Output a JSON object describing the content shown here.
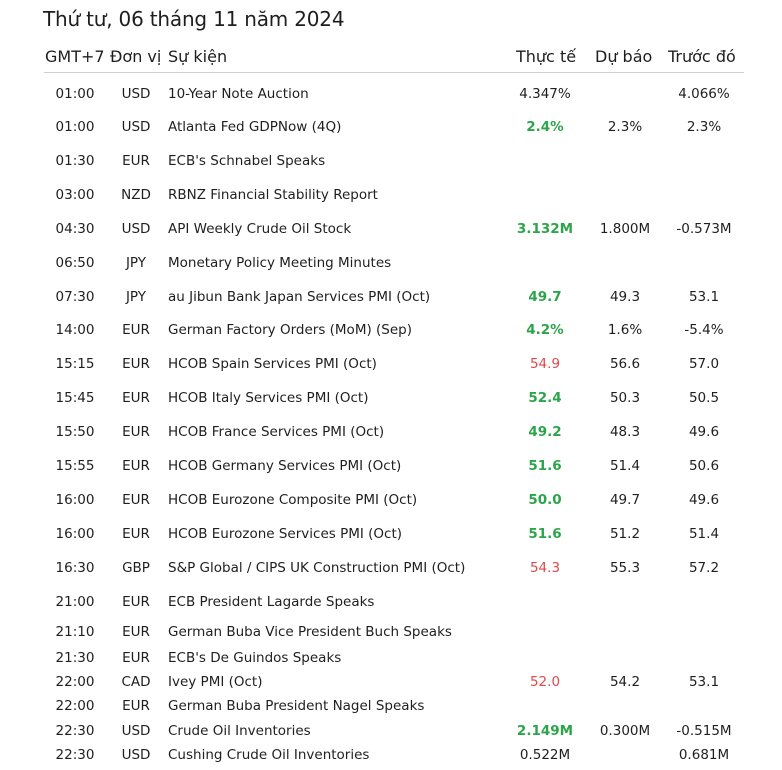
{
  "title": "Thứ tư, 06 tháng 11 năm 2024",
  "headers": {
    "time": "GMT+7",
    "currency": "Đơn vị",
    "event": "Sự kiện",
    "actual": "Thực tế",
    "forecast": "Dự báo",
    "previous": "Trước đó"
  },
  "colors": {
    "good": "#2ca54a",
    "bad": "#e0484a",
    "neutral": "#1f1f1f"
  },
  "rows": [
    {
      "time": "01:00",
      "currency": "USD",
      "event": "10-Year Note Auction",
      "actual": "4.347%",
      "actual_status": "neutral",
      "forecast": "",
      "previous": "4.066%"
    },
    {
      "time": "01:00",
      "currency": "USD",
      "event": "Atlanta Fed GDPNow (4Q)",
      "actual": "2.4%",
      "actual_status": "good",
      "forecast": "2.3%",
      "previous": "2.3%"
    },
    {
      "time": "01:30",
      "currency": "EUR",
      "event": "ECB's Schnabel Speaks",
      "actual": "",
      "actual_status": "neutral",
      "forecast": "",
      "previous": ""
    },
    {
      "time": "03:00",
      "currency": "NZD",
      "event": "RBNZ Financial Stability Report",
      "actual": "",
      "actual_status": "neutral",
      "forecast": "",
      "previous": ""
    },
    {
      "time": "04:30",
      "currency": "USD",
      "event": "API Weekly Crude Oil Stock",
      "actual": "3.132M",
      "actual_status": "good",
      "forecast": "1.800M",
      "previous": "-0.573M"
    },
    {
      "time": "06:50",
      "currency": "JPY",
      "event": "Monetary Policy Meeting Minutes",
      "actual": "",
      "actual_status": "neutral",
      "forecast": "",
      "previous": ""
    },
    {
      "time": "07:30",
      "currency": "JPY",
      "event": "au Jibun Bank Japan Services PMI (Oct)",
      "actual": "49.7",
      "actual_status": "good",
      "forecast": "49.3",
      "previous": "53.1"
    },
    {
      "time": "14:00",
      "currency": "EUR",
      "event": "German Factory Orders (MoM) (Sep)",
      "actual": "4.2%",
      "actual_status": "good",
      "forecast": "1.6%",
      "previous": "-5.4%"
    },
    {
      "time": "15:15",
      "currency": "EUR",
      "event": "HCOB Spain Services PMI (Oct)",
      "actual": "54.9",
      "actual_status": "bad",
      "forecast": "56.6",
      "previous": "57.0"
    },
    {
      "time": "15:45",
      "currency": "EUR",
      "event": "HCOB Italy Services PMI (Oct)",
      "actual": "52.4",
      "actual_status": "good",
      "forecast": "50.3",
      "previous": "50.5"
    },
    {
      "time": "15:50",
      "currency": "EUR",
      "event": "HCOB France Services PMI (Oct)",
      "actual": "49.2",
      "actual_status": "good",
      "forecast": "48.3",
      "previous": "49.6"
    },
    {
      "time": "15:55",
      "currency": "EUR",
      "event": "HCOB Germany Services PMI (Oct)",
      "actual": "51.6",
      "actual_status": "good",
      "forecast": "51.4",
      "previous": "50.6"
    },
    {
      "time": "16:00",
      "currency": "EUR",
      "event": "HCOB Eurozone Composite PMI (Oct)",
      "actual": "50.0",
      "actual_status": "good",
      "forecast": "49.7",
      "previous": "49.6"
    },
    {
      "time": "16:00",
      "currency": "EUR",
      "event": "HCOB Eurozone Services PMI (Oct)",
      "actual": "51.6",
      "actual_status": "good",
      "forecast": "51.2",
      "previous": "51.4"
    },
    {
      "time": "16:30",
      "currency": "GBP",
      "event": "S&P Global / CIPS UK Construction PMI (Oct)",
      "actual": "54.3",
      "actual_status": "bad",
      "forecast": "55.3",
      "previous": "57.2"
    },
    {
      "time": "21:00",
      "currency": "EUR",
      "event": "ECB President Lagarde Speaks",
      "actual": "",
      "actual_status": "neutral",
      "forecast": "",
      "previous": ""
    },
    {
      "time": "21:10",
      "currency": "EUR",
      "event": "German Buba Vice President Buch Speaks",
      "actual": "",
      "actual_status": "neutral",
      "forecast": "",
      "previous": ""
    },
    {
      "time": "21:30",
      "currency": "EUR",
      "event": "ECB's De Guindos Speaks",
      "actual": "",
      "actual_status": "neutral",
      "forecast": "",
      "previous": ""
    },
    {
      "time": "22:00",
      "currency": "CAD",
      "event": "Ivey PMI (Oct)",
      "actual": "52.0",
      "actual_status": "bad",
      "forecast": "54.2",
      "previous": "53.1"
    },
    {
      "time": "22:00",
      "currency": "EUR",
      "event": "German Buba President Nagel Speaks",
      "actual": "",
      "actual_status": "neutral",
      "forecast": "",
      "previous": ""
    },
    {
      "time": "22:30",
      "currency": "USD",
      "event": "Crude Oil Inventories",
      "actual": "2.149M",
      "actual_status": "good",
      "forecast": "0.300M",
      "previous": "-0.515M"
    },
    {
      "time": "22:30",
      "currency": "USD",
      "event": "Cushing Crude Oil Inventories",
      "actual": "0.522M",
      "actual_status": "neutral",
      "forecast": "",
      "previous": "0.681M"
    }
  ]
}
